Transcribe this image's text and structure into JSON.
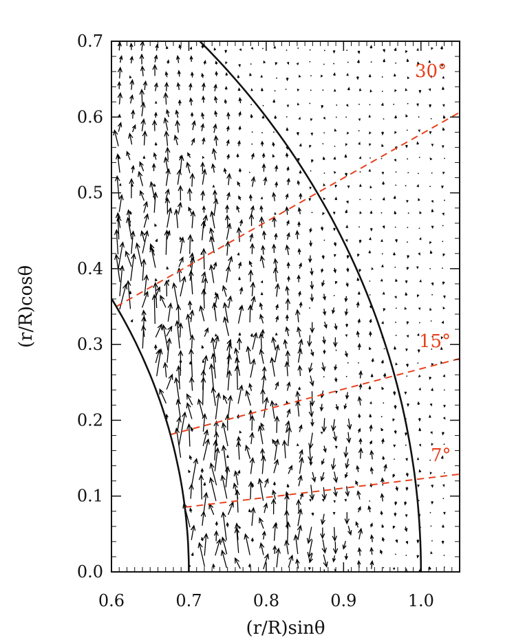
{
  "chart_data": {
    "type": "quiver",
    "xlabel": "(r/R)sinθ",
    "ylabel": "(r/R)cosθ",
    "xlim": [
      0.6,
      1.05
    ],
    "ylim": [
      0.0,
      0.7
    ],
    "xticks": [
      {
        "value": 0.6,
        "label": "0.6"
      },
      {
        "value": 0.7,
        "label": "0.7"
      },
      {
        "value": 0.8,
        "label": "0.8"
      },
      {
        "value": 0.9,
        "label": "0.9"
      },
      {
        "value": 1.0,
        "label": "1.0"
      }
    ],
    "yticks": [
      {
        "value": 0.0,
        "label": "0.0"
      },
      {
        "value": 0.1,
        "label": "0.1"
      },
      {
        "value": 0.2,
        "label": "0.2"
      },
      {
        "value": 0.3,
        "label": "0.3"
      },
      {
        "value": 0.4,
        "label": "0.4"
      },
      {
        "value": 0.5,
        "label": "0.5"
      },
      {
        "value": 0.6,
        "label": "0.6"
      },
      {
        "value": 0.7,
        "label": "0.7"
      }
    ],
    "boundaries": [
      {
        "name": "outer",
        "radius": 1.0
      },
      {
        "name": "inner",
        "radius": 0.7
      }
    ],
    "latitude_lines": [
      {
        "label": "30°",
        "degrees": 30,
        "r_from": 0.7,
        "r_to": 1.22
      },
      {
        "label": "15°",
        "degrees": 15,
        "r_from": 0.7,
        "r_to": 1.09
      },
      {
        "label": "7°",
        "degrees": 7,
        "r_from": 0.7,
        "r_to": 1.06
      }
    ],
    "line_color": "#e8401c",
    "arrow_color": "#000000",
    "grid": false,
    "legend": "none"
  },
  "labels": {
    "angle_30": "30°",
    "angle_15": "15°",
    "angle_7": "7°"
  }
}
